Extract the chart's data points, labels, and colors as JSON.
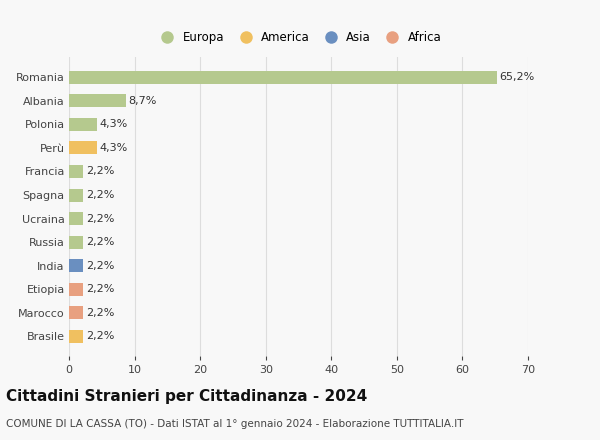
{
  "categories": [
    "Romania",
    "Albania",
    "Polonia",
    "Perù",
    "Francia",
    "Spagna",
    "Ucraina",
    "Russia",
    "India",
    "Etiopia",
    "Marocco",
    "Brasile"
  ],
  "values": [
    65.2,
    8.7,
    4.3,
    4.3,
    2.2,
    2.2,
    2.2,
    2.2,
    2.2,
    2.2,
    2.2,
    2.2
  ],
  "labels": [
    "65,2%",
    "8,7%",
    "4,3%",
    "4,3%",
    "2,2%",
    "2,2%",
    "2,2%",
    "2,2%",
    "2,2%",
    "2,2%",
    "2,2%",
    "2,2%"
  ],
  "colors": [
    "#b5c98e",
    "#b5c98e",
    "#b5c98e",
    "#f0c060",
    "#b5c98e",
    "#b5c98e",
    "#b5c98e",
    "#b5c98e",
    "#6a8fc0",
    "#e8a080",
    "#e8a080",
    "#f0c060"
  ],
  "legend_labels": [
    "Europa",
    "America",
    "Asia",
    "Africa"
  ],
  "legend_colors": [
    "#b5c98e",
    "#f0c060",
    "#6a8fc0",
    "#e8a080"
  ],
  "title": "Cittadini Stranieri per Cittadinanza - 2024",
  "subtitle": "COMUNE DI LA CASSA (TO) - Dati ISTAT al 1° gennaio 2024 - Elaborazione TUTTITALIA.IT",
  "xlim": [
    0,
    70
  ],
  "xticks": [
    0,
    10,
    20,
    30,
    40,
    50,
    60,
    70
  ],
  "background_color": "#f8f8f8",
  "grid_color": "#dddddd",
  "bar_height": 0.55,
  "title_fontsize": 11,
  "subtitle_fontsize": 7.5,
  "label_fontsize": 8,
  "tick_fontsize": 8,
  "legend_fontsize": 8.5
}
